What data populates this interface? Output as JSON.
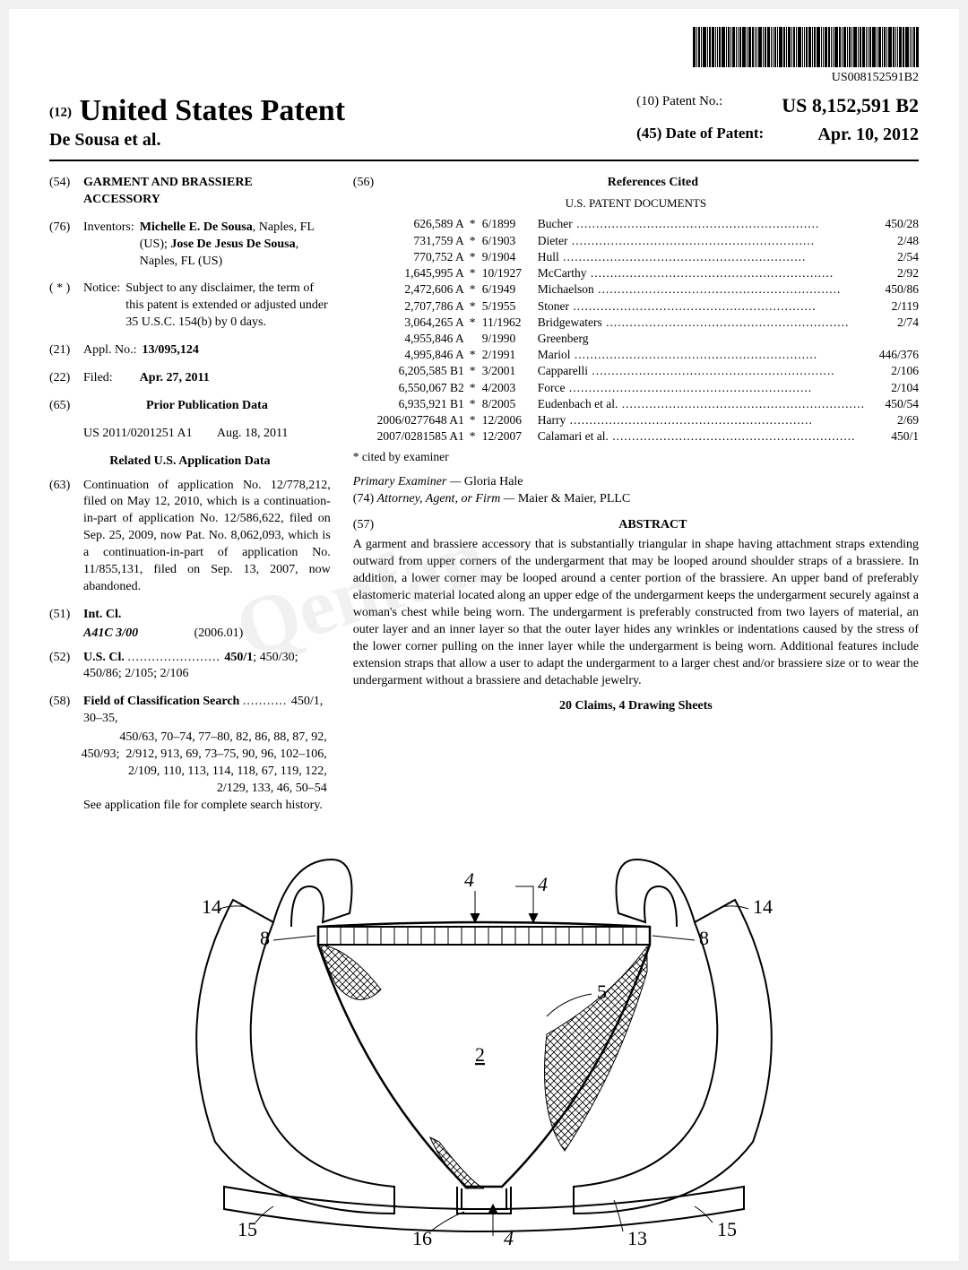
{
  "barcode_text": "US008152591B2",
  "header": {
    "prefix": "(12)",
    "main": "United States Patent",
    "inventor": "De Sousa et al.",
    "patent_no_label": "(10) Patent No.:",
    "patent_no": "US 8,152,591 B2",
    "date_label": "(45) Date of Patent:",
    "date": "Apr. 10, 2012"
  },
  "left": {
    "title_num": "(54)",
    "title": "GARMENT AND BRASSIERE ACCESSORY",
    "inventors_num": "(76)",
    "inventors_label": "Inventors:",
    "inventors_text": "Michelle E. De Sousa, Naples, FL (US); Jose De Jesus De Sousa, Naples, FL (US)",
    "notice_num": "( * )",
    "notice_label": "Notice:",
    "notice_text": "Subject to any disclaimer, the term of this patent is extended or adjusted under 35 U.S.C. 154(b) by 0 days.",
    "appl_num": "(21)",
    "appl_label": "Appl. No.:",
    "appl_val": "13/095,124",
    "filed_num": "(22)",
    "filed_label": "Filed:",
    "filed_val": "Apr. 27, 2011",
    "prior_pub_num": "(65)",
    "prior_pub_heading": "Prior Publication Data",
    "prior_pub_text": "US 2011/0201251 A1        Aug. 18, 2011",
    "related_heading": "Related U.S. Application Data",
    "related_num": "(63)",
    "related_text": "Continuation of application No. 12/778,212, filed on May 12, 2010, which is a continuation-in-part of application No. 12/586,622, filed on Sep. 25, 2009, now Pat. No. 8,062,093, which is a continuation-in-part of application No. 11/855,131, filed on Sep. 13, 2007, now abandoned.",
    "intcl_num": "(51)",
    "intcl_label": "Int. Cl.",
    "intcl_code": "A41C 3/00",
    "intcl_year": "(2006.01)",
    "uscl_num": "(52)",
    "uscl_label": "U.S. Cl.",
    "uscl_text": "450/1; 450/30; 450/86; 2/105; 2/106",
    "fcs_num": "(58)",
    "fcs_label": "Field of Classification Search",
    "fcs_text": "450/1, 30–35, 450/63, 70–74, 77–80, 82, 86, 88, 87, 92, 450/93;  2/912, 913, 69, 73–75, 90, 96, 102–106, 2/109, 110, 113, 114, 118, 67, 119, 122, 2/129, 133, 46, 50–54",
    "fcs_footer": "See application file for complete search history."
  },
  "right": {
    "refs_num": "(56)",
    "refs_heading": "References Cited",
    "refs_sub": "U.S. PATENT DOCUMENTS",
    "refs": [
      {
        "n": "626,589 A",
        "s": "*",
        "d": "6/1899",
        "name": "Bucher",
        "cls": "450/28"
      },
      {
        "n": "731,759 A",
        "s": "*",
        "d": "6/1903",
        "name": "Dieter",
        "cls": "2/48"
      },
      {
        "n": "770,752 A",
        "s": "*",
        "d": "9/1904",
        "name": "Hull",
        "cls": "2/54"
      },
      {
        "n": "1,645,995 A",
        "s": "*",
        "d": "10/1927",
        "name": "McCarthy",
        "cls": "2/92"
      },
      {
        "n": "2,472,606 A",
        "s": "*",
        "d": "6/1949",
        "name": "Michaelson",
        "cls": "450/86"
      },
      {
        "n": "2,707,786 A",
        "s": "*",
        "d": "5/1955",
        "name": "Stoner",
        "cls": "2/119"
      },
      {
        "n": "3,064,265 A",
        "s": "*",
        "d": "11/1962",
        "name": "Bridgewaters",
        "cls": "2/74"
      },
      {
        "n": "4,955,846 A",
        "s": "",
        "d": "9/1990",
        "name": "Greenberg",
        "cls": ""
      },
      {
        "n": "4,995,846 A",
        "s": "*",
        "d": "2/1991",
        "name": "Mariol",
        "cls": "446/376"
      },
      {
        "n": "6,205,585 B1",
        "s": "*",
        "d": "3/2001",
        "name": "Capparelli",
        "cls": "2/106"
      },
      {
        "n": "6,550,067 B2",
        "s": "*",
        "d": "4/2003",
        "name": "Force",
        "cls": "2/104"
      },
      {
        "n": "6,935,921 B1",
        "s": "*",
        "d": "8/2005",
        "name": "Eudenbach et al.",
        "cls": "450/54"
      },
      {
        "n": "2006/0277648 A1",
        "s": "*",
        "d": "12/2006",
        "name": "Harry",
        "cls": "2/69"
      },
      {
        "n": "2007/0281585 A1",
        "s": "*",
        "d": "12/2007",
        "name": "Calamari et al.",
        "cls": "450/1"
      }
    ],
    "cited_note": "* cited by examiner",
    "examiner_label": "Primary Examiner —",
    "examiner": "Gloria Hale",
    "attorney_num": "(74)",
    "attorney_label": "Attorney, Agent, or Firm —",
    "attorney": "Maier & Maier, PLLC",
    "abstract_num": "(57)",
    "abstract_heading": "ABSTRACT",
    "abstract_text": "A garment and brassiere accessory that is substantially triangular in shape having attachment straps extending outward from upper corners of the undergarment that may be looped around shoulder straps of a brassiere. In addition, a lower corner may be looped around a center portion of the brassiere. An upper band of preferably elastomeric material located along an upper edge of the undergarment keeps the undergarment securely against a woman's chest while being worn. The undergarment is preferably constructed from two layers of material, an outer layer and an inner layer so that the outer layer hides any wrinkles or indentations caused by the stress of the lower corner pulling on the inner layer while the undergarment is being worn. Additional features include extension straps that allow a user to adapt the undergarment to a larger chest and/or brassiere size or to wear the undergarment without a brassiere and detachable jewelry.",
    "claims_line": "20 Claims, 4 Drawing Sheets"
  },
  "figure": {
    "labels": {
      "l14a": "14",
      "l14b": "14",
      "l8a": "8",
      "l8b": "8",
      "l5": "5",
      "l2": "2",
      "l15a": "15",
      "l15b": "15",
      "l16": "16",
      "l13": "13",
      "l4a": "4",
      "l4b": "4",
      "l4c": "4"
    }
  }
}
